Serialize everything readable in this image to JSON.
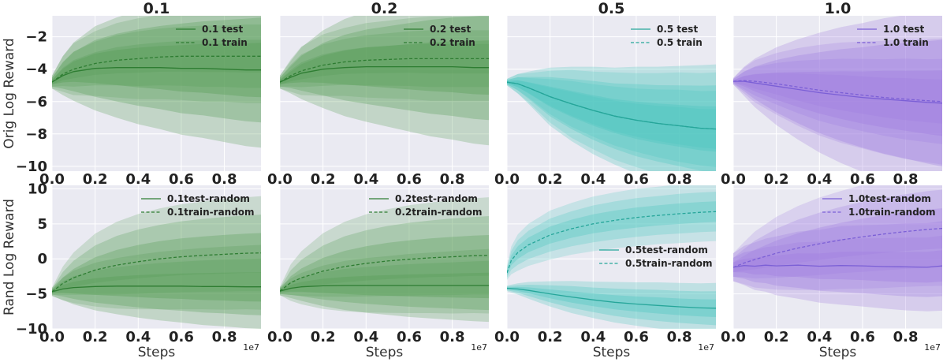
{
  "chart_data": {
    "type": "line",
    "x_exponent_label": "1e7",
    "xlabel": "Steps",
    "row_ylabels": [
      "Orig Log Reward",
      "Rand Log Reward"
    ],
    "x_ticks": [
      "0.0",
      "0.2",
      "0.4",
      "0.6",
      "0.8"
    ],
    "xlim": [
      0,
      0.97
    ],
    "rows": [
      {
        "ylim": [
          -10.3,
          -0.7
        ],
        "y_ticks": [
          -2,
          -4,
          -6,
          -8,
          -10
        ]
      },
      {
        "ylim": [
          -10,
          10.5
        ],
        "y_ticks": [
          10,
          5,
          0,
          -5,
          -10
        ]
      }
    ],
    "panels": [
      {
        "row": 0,
        "col": 0,
        "title": "0.1",
        "color": "#2e7d32",
        "band_color": "#5a9e5a",
        "legend_pos": "top-right",
        "series": [
          {
            "name": "0.1 test",
            "style": "solid",
            "x": [
              0,
              0.05,
              0.1,
              0.2,
              0.3,
              0.4,
              0.5,
              0.6,
              0.7,
              0.8,
              0.9,
              0.97
            ],
            "y": [
              -4.8,
              -4.4,
              -4.15,
              -3.95,
              -3.9,
              -3.9,
              -3.9,
              -3.95,
              -3.95,
              -4.0,
              -4.05,
              -4.05
            ],
            "std": [
              0.2,
              0.6,
              0.9,
              1.3,
              1.55,
              1.75,
              1.9,
              2.05,
              2.15,
              2.25,
              2.35,
              2.4
            ]
          },
          {
            "name": "0.1 train",
            "style": "dashed",
            "x": [
              0,
              0.05,
              0.1,
              0.2,
              0.3,
              0.4,
              0.5,
              0.6,
              0.7,
              0.8,
              0.9,
              0.97
            ],
            "y": [
              -4.8,
              -4.3,
              -4.0,
              -3.65,
              -3.45,
              -3.35,
              -3.25,
              -3.2,
              -3.2,
              -3.2,
              -3.2,
              -3.2
            ],
            "std": [
              0.2,
              0.55,
              0.8,
              1.0,
              1.15,
              1.25,
              1.3,
              1.35,
              1.4,
              1.4,
              1.45,
              1.45
            ]
          }
        ]
      },
      {
        "row": 0,
        "col": 1,
        "title": "0.2",
        "color": "#2e7d32",
        "band_color": "#5a9e5a",
        "legend_pos": "top-right",
        "series": [
          {
            "name": "0.2 test",
            "style": "solid",
            "x": [
              0,
              0.05,
              0.1,
              0.2,
              0.3,
              0.4,
              0.5,
              0.6,
              0.7,
              0.8,
              0.9,
              0.97
            ],
            "y": [
              -4.8,
              -4.5,
              -4.25,
              -4.0,
              -3.9,
              -3.85,
              -3.85,
              -3.85,
              -3.85,
              -3.85,
              -3.9,
              -3.9
            ],
            "std": [
              0.2,
              0.5,
              0.8,
              1.2,
              1.5,
              1.7,
              1.85,
              2.0,
              2.15,
              2.25,
              2.35,
              2.4
            ]
          },
          {
            "name": "0.2 train",
            "style": "dashed",
            "x": [
              0,
              0.05,
              0.1,
              0.2,
              0.3,
              0.4,
              0.5,
              0.6,
              0.7,
              0.8,
              0.9,
              0.97
            ],
            "y": [
              -4.8,
              -4.4,
              -4.1,
              -3.75,
              -3.55,
              -3.45,
              -3.4,
              -3.35,
              -3.35,
              -3.35,
              -3.35,
              -3.35
            ],
            "std": [
              0.2,
              0.5,
              0.75,
              0.95,
              1.05,
              1.15,
              1.2,
              1.25,
              1.3,
              1.3,
              1.3,
              1.3
            ]
          }
        ]
      },
      {
        "row": 0,
        "col": 2,
        "title": "0.5",
        "color": "#26a69a",
        "band_color": "#4fc6c0",
        "legend_pos": "top-right",
        "series": [
          {
            "name": "0.5 test",
            "style": "solid",
            "x": [
              0,
              0.05,
              0.1,
              0.2,
              0.3,
              0.4,
              0.5,
              0.6,
              0.7,
              0.8,
              0.9,
              0.97
            ],
            "y": [
              -4.8,
              -4.9,
              -5.15,
              -5.7,
              -6.15,
              -6.55,
              -6.9,
              -7.15,
              -7.35,
              -7.5,
              -7.65,
              -7.7
            ],
            "std": [
              0.1,
              0.3,
              0.5,
              0.9,
              1.15,
              1.35,
              1.5,
              1.65,
              1.75,
              1.85,
              1.95,
              2.0
            ]
          },
          {
            "name": "0.5 train",
            "style": "dashed",
            "x": [
              0,
              0.05,
              0.1,
              0.2,
              0.3,
              0.4,
              0.5,
              0.6,
              0.7,
              0.8,
              0.9,
              0.97
            ],
            "y": [
              -4.8,
              -4.9,
              -5.15,
              -5.7,
              -6.15,
              -6.55,
              -6.9,
              -7.15,
              -7.35,
              -7.5,
              -7.65,
              -7.7
            ],
            "std": [
              0.1,
              0.3,
              0.45,
              0.8,
              1.05,
              1.2,
              1.35,
              1.45,
              1.55,
              1.65,
              1.7,
              1.75
            ]
          }
        ]
      },
      {
        "row": 0,
        "col": 3,
        "title": "1.0",
        "color": "#7b5fd6",
        "band_color": "#a07fe0",
        "legend_pos": "top-right",
        "series": [
          {
            "name": "1.0 test",
            "style": "solid",
            "x": [
              0,
              0.05,
              0.1,
              0.2,
              0.3,
              0.4,
              0.5,
              0.6,
              0.7,
              0.8,
              0.9,
              0.97
            ],
            "y": [
              -4.75,
              -4.75,
              -4.85,
              -5.05,
              -5.25,
              -5.45,
              -5.6,
              -5.75,
              -5.85,
              -5.95,
              -6.05,
              -6.1
            ],
            "std": [
              0.1,
              0.45,
              0.75,
              1.2,
              1.55,
              1.85,
              2.1,
              2.3,
              2.5,
              2.65,
              2.8,
              2.9
            ]
          },
          {
            "name": "1.0 train",
            "style": "dashed",
            "x": [
              0,
              0.05,
              0.1,
              0.2,
              0.3,
              0.4,
              0.5,
              0.6,
              0.7,
              0.8,
              0.9,
              0.97
            ],
            "y": [
              -4.75,
              -4.7,
              -4.75,
              -4.9,
              -5.1,
              -5.3,
              -5.45,
              -5.6,
              -5.75,
              -5.85,
              -5.95,
              -6.0
            ],
            "std": [
              0.1,
              0.4,
              0.65,
              0.95,
              1.2,
              1.4,
              1.55,
              1.65,
              1.75,
              1.85,
              1.9,
              1.95
            ]
          }
        ]
      },
      {
        "row": 1,
        "col": 0,
        "title": "",
        "color": "#2e7d32",
        "band_color": "#5a9e5a",
        "legend_pos": "top-right",
        "series": [
          {
            "name": "0.1test-random",
            "style": "solid",
            "x": [
              0,
              0.05,
              0.1,
              0.2,
              0.3,
              0.4,
              0.5,
              0.6,
              0.7,
              0.8,
              0.9,
              0.97
            ],
            "y": [
              -4.7,
              -4.3,
              -4.1,
              -3.95,
              -3.9,
              -3.9,
              -3.9,
              -3.9,
              -3.95,
              -3.95,
              -4.0,
              -4.0
            ],
            "std": [
              0.3,
              0.8,
              1.2,
              1.7,
              2.0,
              2.25,
              2.45,
              2.6,
              2.75,
              2.85,
              2.95,
              3.0
            ]
          },
          {
            "name": "0.1train-random",
            "style": "dashed",
            "x": [
              0,
              0.05,
              0.1,
              0.2,
              0.3,
              0.4,
              0.5,
              0.6,
              0.7,
              0.8,
              0.9,
              0.97
            ],
            "y": [
              -4.7,
              -3.5,
              -2.7,
              -1.6,
              -0.9,
              -0.4,
              0.0,
              0.3,
              0.5,
              0.65,
              0.8,
              0.85
            ],
            "std": [
              0.3,
              1.2,
              1.8,
              2.6,
              3.1,
              3.4,
              3.6,
              3.75,
              3.85,
              3.95,
              4.0,
              4.05
            ]
          }
        ]
      },
      {
        "row": 1,
        "col": 1,
        "title": "",
        "color": "#2e7d32",
        "band_color": "#5a9e5a",
        "legend_pos": "top-right",
        "series": [
          {
            "name": "0.2test-random",
            "style": "solid",
            "x": [
              0,
              0.05,
              0.1,
              0.2,
              0.3,
              0.4,
              0.5,
              0.6,
              0.7,
              0.8,
              0.9,
              0.97
            ],
            "y": [
              -4.6,
              -4.2,
              -4.0,
              -3.85,
              -3.8,
              -3.8,
              -3.8,
              -3.8,
              -3.8,
              -3.8,
              -3.8,
              -3.8
            ],
            "std": [
              0.3,
              0.7,
              1.0,
              1.45,
              1.75,
              1.95,
              2.1,
              2.25,
              2.35,
              2.45,
              2.55,
              2.6
            ]
          },
          {
            "name": "0.2train-random",
            "style": "dashed",
            "x": [
              0,
              0.05,
              0.1,
              0.2,
              0.3,
              0.4,
              0.5,
              0.6,
              0.7,
              0.8,
              0.9,
              0.97
            ],
            "y": [
              -4.6,
              -3.4,
              -2.7,
              -1.75,
              -1.1,
              -0.65,
              -0.3,
              -0.05,
              0.15,
              0.3,
              0.45,
              0.5
            ],
            "std": [
              0.3,
              1.3,
              1.9,
              2.7,
              3.2,
              3.5,
              3.7,
              3.85,
              3.95,
              4.05,
              4.1,
              4.15
            ]
          }
        ]
      },
      {
        "row": 1,
        "col": 2,
        "title": "",
        "color": "#26a69a",
        "band_color": "#4fc6c0",
        "legend_pos": "center-right",
        "series": [
          {
            "name": "0.5test-random",
            "style": "solid",
            "x": [
              0,
              0.05,
              0.1,
              0.2,
              0.3,
              0.4,
              0.5,
              0.6,
              0.7,
              0.8,
              0.9,
              0.97
            ],
            "y": [
              -4.2,
              -4.3,
              -4.5,
              -5.0,
              -5.45,
              -5.85,
              -6.2,
              -6.45,
              -6.65,
              -6.85,
              -7.0,
              -7.05
            ],
            "std": [
              0.2,
              0.4,
              0.6,
              0.9,
              1.15,
              1.3,
              1.45,
              1.55,
              1.65,
              1.7,
              1.75,
              1.8
            ]
          },
          {
            "name": "0.5train-random",
            "style": "dashed",
            "x": [
              0,
              0.02,
              0.05,
              0.1,
              0.2,
              0.3,
              0.4,
              0.5,
              0.6,
              0.7,
              0.8,
              0.9,
              0.97
            ],
            "y": [
              -2.0,
              -0.2,
              0.9,
              2.0,
              3.4,
              4.3,
              5.0,
              5.5,
              5.9,
              6.2,
              6.45,
              6.65,
              6.75
            ],
            "std": [
              0.5,
              1.0,
              1.3,
              1.5,
              1.75,
              1.85,
              1.95,
              2.0,
              2.05,
              2.05,
              2.1,
              2.1,
              2.1
            ]
          }
        ]
      },
      {
        "row": 1,
        "col": 3,
        "title": "",
        "color": "#7b5fd6",
        "band_color": "#a07fe0",
        "legend_pos": "top-right",
        "series": [
          {
            "name": "1.0test-random",
            "style": "solid",
            "x": [
              0,
              0.05,
              0.1,
              0.15,
              0.2,
              0.3,
              0.4,
              0.5,
              0.6,
              0.7,
              0.8,
              0.9,
              0.97
            ],
            "y": [
              -1.2,
              -0.95,
              -1.05,
              -0.9,
              -1.0,
              -0.9,
              -1.05,
              -0.95,
              -1.0,
              -1.1,
              -1.15,
              -1.2,
              -1.0
            ],
            "std": [
              1.0,
              1.4,
              1.7,
              1.9,
              2.1,
              2.4,
              2.6,
              2.8,
              2.9,
              3.0,
              3.1,
              3.15,
              3.2
            ]
          },
          {
            "name": "1.0train-random",
            "style": "dashed",
            "x": [
              0,
              0.05,
              0.1,
              0.2,
              0.3,
              0.4,
              0.5,
              0.6,
              0.7,
              0.8,
              0.9,
              0.97
            ],
            "y": [
              -1.2,
              -0.6,
              -0.1,
              0.8,
              1.55,
              2.15,
              2.7,
              3.15,
              3.55,
              3.9,
              4.2,
              4.35
            ],
            "std": [
              1.0,
              1.5,
              2.0,
              2.6,
              3.0,
              3.3,
              3.5,
              3.7,
              3.85,
              3.95,
              4.05,
              4.1
            ]
          }
        ]
      }
    ]
  }
}
